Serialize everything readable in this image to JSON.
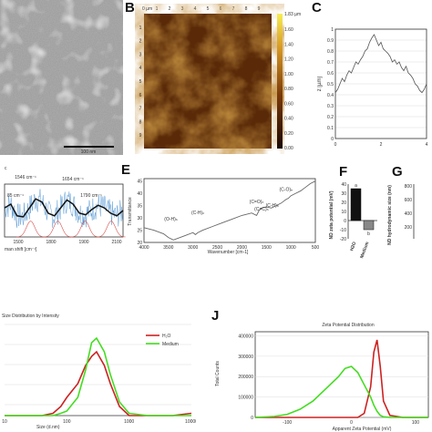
{
  "panels": {
    "A": {
      "scale_label": "100 nm"
    },
    "B": {
      "label": "B",
      "top_axis_unit": "0 µm",
      "top_ticks": [
        "1",
        "2",
        "3",
        "4",
        "5",
        "6",
        "7",
        "8",
        "9"
      ],
      "colorbar_top": "1.83 µm",
      "colorbar_ticks": [
        "1.60",
        "1.40",
        "1.20",
        "1.00",
        "0.80",
        "0.60",
        "0.40",
        "0.20",
        "0.00"
      ],
      "colors": {
        "low": "#3a1a05",
        "high": "#f2e23c"
      }
    },
    "C": {
      "label": "C",
      "ylabel": "z [µm]"
    },
    "D": {
      "peak_labels": [
        "1546 cm⁻¹",
        "1654 cm⁻¹",
        "1790 cm⁻¹",
        "85 cm⁻¹"
      ],
      "xlabel": "man shift [cm⁻¹]"
    },
    "E": {
      "label": "E",
      "ylabel": "Transmittance",
      "xlabel": "Wavenumber [cm-1]",
      "annotations": [
        "(O-H)ₙ",
        "(C-H)ₙ",
        "(C=O)ₙ",
        "(C=C)ₙ",
        "(C-H)ₙ",
        "(C-O)ₙ"
      ]
    },
    "F": {
      "label": "F",
      "ylabel": "ND zeta potential (mV)",
      "letters": [
        "a",
        "b"
      ]
    },
    "G": {
      "label": "G",
      "ylabel": "ND hydrodynamic size (nm)"
    },
    "I": {
      "title": "Size Distribution by Intensity",
      "xlabel": "Size (d.nm)"
    },
    "J": {
      "label": "J",
      "title": "Zeta Potential Distribution",
      "xlabel": "Apparent Zeta Potential (mV)",
      "ylabel": "Total Counts"
    }
  },
  "chart_data": [
    {
      "panel": "C",
      "type": "line",
      "ylim": [
        0,
        1.0
      ],
      "xlim": [
        0,
        4
      ],
      "y_ticks": [
        "0",
        "0.1",
        "0.2",
        "0.3",
        "0.4",
        "0.5",
        "0.6",
        "0.7",
        "0.8",
        "0.9",
        "1"
      ],
      "x_ticks": [
        "0",
        "2",
        "4"
      ],
      "x": [
        0,
        0.1,
        0.2,
        0.3,
        0.4,
        0.5,
        0.6,
        0.7,
        0.8,
        0.9,
        1.0,
        1.1,
        1.2,
        1.3,
        1.4,
        1.5,
        1.6,
        1.7,
        1.8,
        1.9,
        2.0,
        2.1,
        2.2,
        2.3,
        2.4,
        2.5,
        2.6,
        2.7,
        2.8,
        2.9,
        3.0,
        3.1,
        3.2,
        3.3,
        3.4,
        3.5,
        3.6,
        3.7,
        3.8,
        3.9,
        4.0
      ],
      "y": [
        0.42,
        0.45,
        0.5,
        0.55,
        0.52,
        0.58,
        0.62,
        0.6,
        0.65,
        0.7,
        0.68,
        0.72,
        0.75,
        0.8,
        0.82,
        0.88,
        0.92,
        0.95,
        0.9,
        0.85,
        0.88,
        0.82,
        0.8,
        0.78,
        0.75,
        0.7,
        0.72,
        0.68,
        0.7,
        0.65,
        0.62,
        0.66,
        0.6,
        0.58,
        0.55,
        0.5,
        0.48,
        0.44,
        0.42,
        0.45,
        0.5
      ]
    },
    {
      "panel": "D",
      "type": "line",
      "x_ticks": [
        "1500",
        "1800",
        "1900",
        "2100"
      ],
      "series": [
        {
          "values": [
            0.55,
            0.62,
            0.4,
            0.38,
            0.55,
            0.72,
            0.66,
            0.45,
            0.4,
            0.55,
            0.7,
            0.62,
            0.45,
            0.42,
            0.52,
            0.6,
            0.55,
            0.45,
            0.4,
            0.5
          ]
        }
      ]
    },
    {
      "panel": "E",
      "type": "line",
      "y_ticks": [
        "20",
        "25",
        "30",
        "35",
        "40",
        "45"
      ],
      "x_ticks": [
        "4000",
        "3500",
        "3000",
        "2500",
        "2000",
        "1500",
        "1000",
        "500"
      ],
      "xlim": [
        4000,
        500
      ],
      "ylim": [
        20,
        46
      ],
      "x": [
        4000,
        3800,
        3600,
        3500,
        3400,
        3200,
        3000,
        2950,
        2900,
        2800,
        2600,
        2400,
        2200,
        2000,
        1800,
        1700,
        1650,
        1600,
        1500,
        1400,
        1300,
        1200,
        1100,
        1050,
        1000,
        900,
        800,
        700,
        600,
        500
      ],
      "y": [
        26,
        25,
        23.5,
        22,
        21,
        22.5,
        24,
        23.2,
        24,
        25,
        26.5,
        28,
        29.5,
        31,
        32,
        31,
        33,
        34,
        34.5,
        34,
        35,
        36,
        37.5,
        38,
        39,
        40,
        41,
        42.5,
        44,
        45
      ]
    },
    {
      "panel": "F",
      "type": "bar",
      "categories": [
        "H2O",
        "Medium"
      ],
      "values": [
        35,
        -10
      ],
      "y_ticks": [
        "40",
        "30",
        "20",
        "10",
        "0",
        "-10",
        "-20"
      ],
      "ylim": [
        -20,
        40
      ],
      "colors": [
        "#111111",
        "#888888"
      ]
    },
    {
      "panel": "G",
      "type": "bar",
      "y_ticks": [
        "800",
        "600",
        "400",
        "200"
      ]
    },
    {
      "panel": "I",
      "type": "line",
      "x_ticks": [
        "10",
        "100",
        "1000",
        "10000"
      ],
      "x": [
        10,
        20,
        40,
        60,
        80,
        100,
        150,
        200,
        250,
        300,
        400,
        500,
        700,
        1000,
        2000,
        5000,
        10000
      ],
      "series": [
        {
          "name": "H₂O",
          "color": "#cc2222",
          "values": [
            0,
            0,
            0,
            0.5,
            2,
            4,
            7,
            11,
            13,
            14,
            11,
            7,
            2,
            0,
            0,
            0,
            0.5
          ]
        },
        {
          "name": "Medium",
          "color": "#44dd22",
          "values": [
            0,
            0,
            0,
            0,
            0.5,
            1,
            4,
            10,
            16,
            17,
            14,
            9,
            3,
            0.5,
            0,
            0,
            0
          ]
        }
      ],
      "ylim": [
        0,
        20
      ],
      "legend": "top-right"
    },
    {
      "panel": "J",
      "type": "line",
      "y_ticks": [
        "0",
        "100000",
        "200000",
        "300000",
        "400000"
      ],
      "x_ticks": [
        "-100",
        "0",
        "100"
      ],
      "xlim": [
        -150,
        120
      ],
      "ylim": [
        0,
        420000
      ],
      "x": [
        -150,
        -120,
        -100,
        -80,
        -60,
        -40,
        -20,
        -10,
        0,
        10,
        20,
        30,
        35,
        40,
        45,
        50,
        60,
        80,
        100,
        120
      ],
      "series": [
        {
          "color": "#cc2222",
          "values": [
            0,
            0,
            0,
            0,
            0,
            0,
            0,
            0,
            0,
            0,
            20000,
            150000,
            320000,
            380000,
            250000,
            80000,
            10000,
            0,
            0,
            0
          ]
        },
        {
          "color": "#44dd22",
          "values": [
            0,
            5000,
            15000,
            40000,
            80000,
            140000,
            200000,
            240000,
            250000,
            220000,
            160000,
            100000,
            60000,
            30000,
            10000,
            3000,
            0,
            0,
            0,
            0
          ]
        }
      ]
    }
  ]
}
